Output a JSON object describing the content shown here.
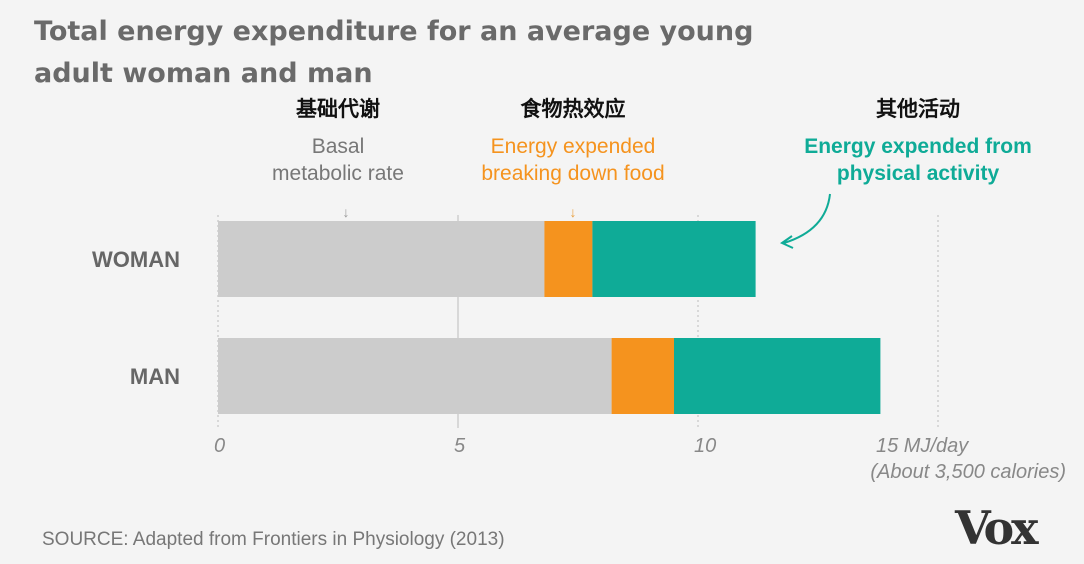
{
  "chart_data": {
    "type": "bar",
    "orientation": "horizontal",
    "stacked": true,
    "title": "Total energy expenditure for an average young adult woman and man",
    "title_lines": [
      "Total energy expenditure for an average young",
      "adult woman and man"
    ],
    "categories": [
      "WOMAN",
      "MAN"
    ],
    "series": [
      {
        "name": "Basal metabolic rate",
        "name_cn": "基础代谢",
        "label_lines": [
          "Basal",
          "metabolic rate"
        ],
        "color": "#cccccc",
        "values": [
          6.8,
          8.2
        ]
      },
      {
        "name": "Energy expended breaking down food",
        "name_cn": "食物热效应",
        "label_lines": [
          "Energy expended",
          "breaking down food"
        ],
        "color": "#f5931e",
        "values": [
          1.0,
          1.3
        ]
      },
      {
        "name": "Energy expended from physical activity",
        "name_cn": "其他活动",
        "label_lines": [
          "Energy expended from",
          "physical activity"
        ],
        "color": "#0fab97",
        "values": [
          3.4,
          4.3
        ]
      }
    ],
    "xlim": [
      0,
      15
    ],
    "xticks": [
      "0",
      "5",
      "10",
      "15 MJ/day"
    ],
    "xtick_values": [
      0,
      5,
      10,
      15
    ],
    "xunit_note": "(About 3,500 calories)",
    "grid": true,
    "legend": "annotations-top"
  },
  "source": "SOURCE: Adapted from Frontiers in Physiology (2013)",
  "logo": "Vox"
}
